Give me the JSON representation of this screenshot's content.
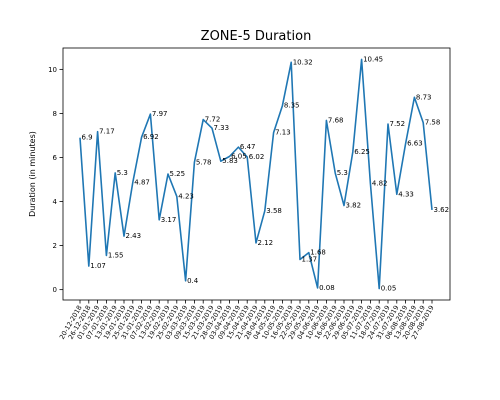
{
  "chart_data": {
    "type": "line",
    "title": "ZONE-5 Duration",
    "ylabel": "Duration (in minutes)",
    "categories": [
      "20-12-2018",
      "26-12-2018",
      "01-01-2019",
      "07-01-2019",
      "13-01-2019",
      "19-01-2019",
      "25-01-2019",
      "31-01-2019",
      "07-02-2019",
      "13-02-2019",
      "19-02-2019",
      "25-02-2019",
      "03-03-2019",
      "09-03-2019",
      "15-03-2019",
      "21-03-2019",
      "28-03-2019",
      "03-04-2019",
      "09-04-2019",
      "15-04-2019",
      "21-04-2019",
      "28-04-2019",
      "04-05-2019",
      "10-05-2019",
      "16-05-2019",
      "22-05-2019",
      "29-05-2019",
      "04-06-2019",
      "10-06-2019",
      "16-06-2019",
      "22-06-2019",
      "29-06-2019",
      "05-07-2019",
      "11-07-2019",
      "18-07-2019",
      "24-07-2019",
      "31-07-2019",
      "06-08-2019",
      "13-08-2019",
      "20-08-2019",
      "27-08-2019"
    ],
    "series": [
      {
        "name": "ZONE-5",
        "color": "#1f77b4",
        "values": [
          6.9,
          1.07,
          7.17,
          1.55,
          5.3,
          2.43,
          4.87,
          6.92,
          7.97,
          3.17,
          5.25,
          4.23,
          0.4,
          5.78,
          7.72,
          7.33,
          5.83,
          6.05,
          6.47,
          6.02,
          2.12,
          3.58,
          7.13,
          8.35,
          10.32,
          1.37,
          1.68,
          0.08,
          7.68,
          5.3,
          3.82,
          6.25,
          10.45,
          4.82,
          0.05,
          7.52,
          4.33,
          6.63,
          8.73,
          7.58,
          3.62
        ]
      }
    ],
    "ylim": [
      -0.47,
      10.97
    ],
    "yticks": [
      0,
      2,
      4,
      6,
      8,
      10
    ]
  }
}
